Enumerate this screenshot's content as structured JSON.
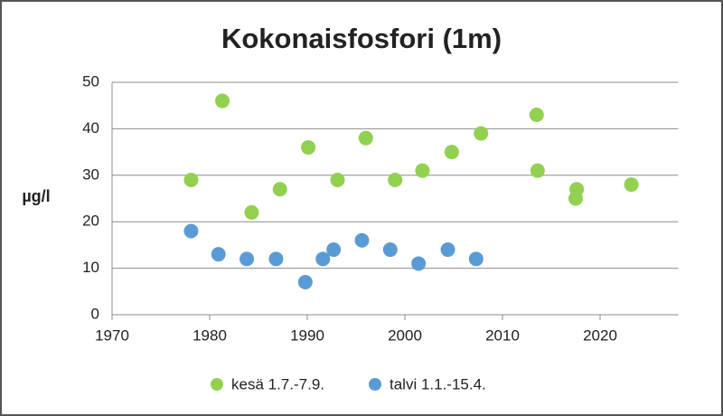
{
  "chart_data": {
    "type": "scatter",
    "title": "Kokonaisfosfori (1m)",
    "y_label": "µg/l",
    "xlim": [
      1970,
      2028
    ],
    "xticks": [
      1970,
      1980,
      1990,
      2000,
      2010,
      2020
    ],
    "ylim": [
      0,
      50
    ],
    "yticks": [
      0,
      10,
      20,
      30,
      40,
      50
    ],
    "grid": true,
    "legend": "bottom",
    "series": [
      {
        "name": "kesä 1.7.-7.9.",
        "color": "#92d050",
        "x": [
          1978.1,
          1981.3,
          1984.3,
          1987.2,
          1990.1,
          1993.1,
          1996.0,
          1999.0,
          2001.8,
          2004.8,
          2007.8,
          2013.5,
          2013.6,
          2017.6,
          2017.5,
          2023.2
        ],
        "values": [
          29,
          46,
          22,
          27,
          36,
          29,
          38,
          29,
          31,
          35,
          39,
          43,
          31,
          27,
          25,
          28
        ]
      },
      {
        "name": "talvi 1.1.-15.4.",
        "color": "#5b9bd5",
        "x": [
          1978.1,
          1980.9,
          1983.8,
          1986.8,
          1989.8,
          1991.6,
          1992.7,
          1995.6,
          1998.5,
          2001.4,
          2004.4,
          2007.3
        ],
        "values": [
          18,
          13,
          12,
          12,
          7,
          12,
          14,
          16,
          14,
          11,
          14,
          12
        ]
      }
    ]
  }
}
